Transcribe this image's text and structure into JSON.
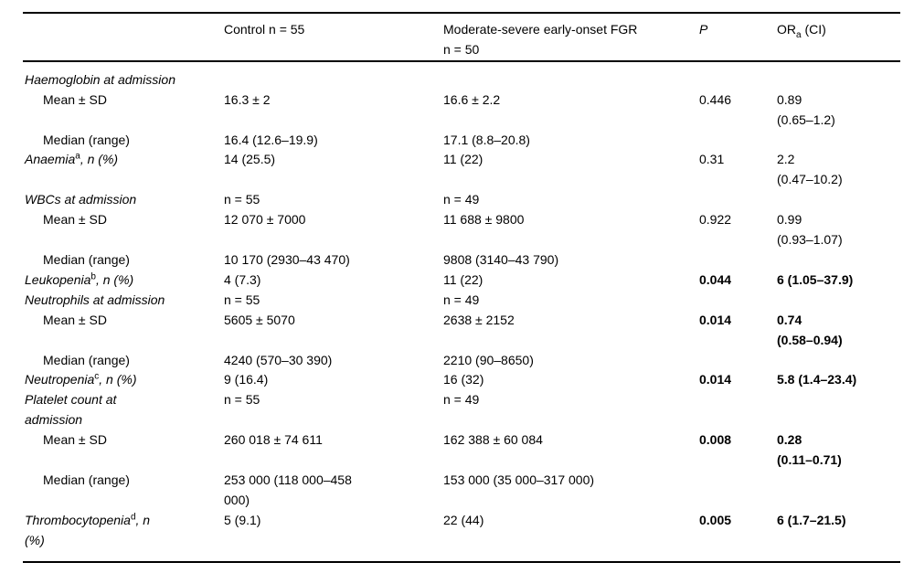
{
  "table": {
    "columns": {
      "label": "",
      "control": "Control n = 55",
      "fgr": [
        "Moderate-severe early-onset FGR",
        "n = 50"
      ],
      "p": "P",
      "or_html": "OR<sub>a</sub> (CI)"
    },
    "rows": [
      {
        "label": "Haemoglobin at admission",
        "italic": true,
        "indent": false,
        "control": "",
        "fgr": "",
        "p": "",
        "or": "",
        "bold": false
      },
      {
        "label": "Mean ± SD",
        "italic": false,
        "indent": true,
        "control": "16.3 ± 2",
        "fgr": "16.6 ± 2.2",
        "p": "0.446",
        "or": "0.89\n(0.65–1.2)",
        "bold": false
      },
      {
        "label": "Median (range)",
        "italic": false,
        "indent": true,
        "control": "16.4 (12.6–19.9)",
        "fgr": "17.1 (8.8–20.8)",
        "p": "",
        "or": "",
        "bold": false
      },
      {
        "label": "Anaemia<sup>a</sup>, n (%)",
        "italic": true,
        "indent": false,
        "control": "14 (25.5)",
        "fgr": "11 (22)",
        "p": "0.31",
        "or": "2.2\n(0.47–10.2)",
        "bold": false
      },
      {
        "label": "WBCs at admission",
        "italic": true,
        "indent": false,
        "control": "n = 55",
        "fgr": "n = 49",
        "p": "",
        "or": "",
        "bold": false
      },
      {
        "label": "Mean ± SD",
        "italic": false,
        "indent": true,
        "control": "12 070 ± 7000",
        "fgr": "11 688 ± 9800",
        "p": "0.922",
        "or": "0.99\n(0.93–1.07)",
        "bold": false
      },
      {
        "label": "Median (range)",
        "italic": false,
        "indent": true,
        "control": "10 170 (2930–43 470)",
        "fgr": "9808 (3140–43 790)",
        "p": "",
        "or": "",
        "bold": false
      },
      {
        "label": "Leukopenia<sup>b</sup>, n (%)",
        "italic": true,
        "indent": false,
        "control": "4 (7.3)",
        "fgr": "11 (22)",
        "p": "0.044",
        "or": "6 (1.05–37.9)",
        "bold": true
      },
      {
        "label": "Neutrophils at admission",
        "italic": true,
        "indent": false,
        "control": "n = 55",
        "fgr": "n = 49",
        "p": "",
        "or": "",
        "bold": false
      },
      {
        "label": "Mean ± SD",
        "italic": false,
        "indent": true,
        "control": "5605 ± 5070",
        "fgr": "2638 ± 2152",
        "p": "0.014",
        "or": "0.74\n(0.58–0.94)",
        "bold": true
      },
      {
        "label": "Median (range)",
        "italic": false,
        "indent": true,
        "control": "4240 (570–30 390)",
        "fgr": "2210 (90–8650)",
        "p": "",
        "or": "",
        "bold": false
      },
      {
        "label": "Neutropenia<sup>c</sup>, n (%)",
        "italic": true,
        "indent": false,
        "control": "9 (16.4)",
        "fgr": "16 (32)",
        "p": "0.014",
        "or": "5.8 (1.4–23.4)",
        "bold": true
      },
      {
        "label": "Platelet count at\nadmission",
        "italic": true,
        "indent": false,
        "control": "n = 55",
        "fgr": "n = 49",
        "p": "",
        "or": "",
        "bold": false
      },
      {
        "label": "Mean ± SD",
        "italic": false,
        "indent": true,
        "control": "260 018 ± 74 611",
        "fgr": "162 388 ± 60 084",
        "p": "0.008",
        "or": "0.28\n(0.11–0.71)",
        "bold": true
      },
      {
        "label": "Median (range)",
        "italic": false,
        "indent": true,
        "control": "253 000 (118 000–458\n000)",
        "fgr": "153 000 (35 000–317 000)",
        "p": "",
        "or": "",
        "bold": false
      },
      {
        "label": "Thrombocytopenia<sup>d</sup>, n\n(%)",
        "italic": true,
        "indent": false,
        "control": "5 (9.1)",
        "fgr": "22 (44)",
        "p": "0.005",
        "or": "6 (1.7–21.5)",
        "bold": true
      }
    ]
  }
}
